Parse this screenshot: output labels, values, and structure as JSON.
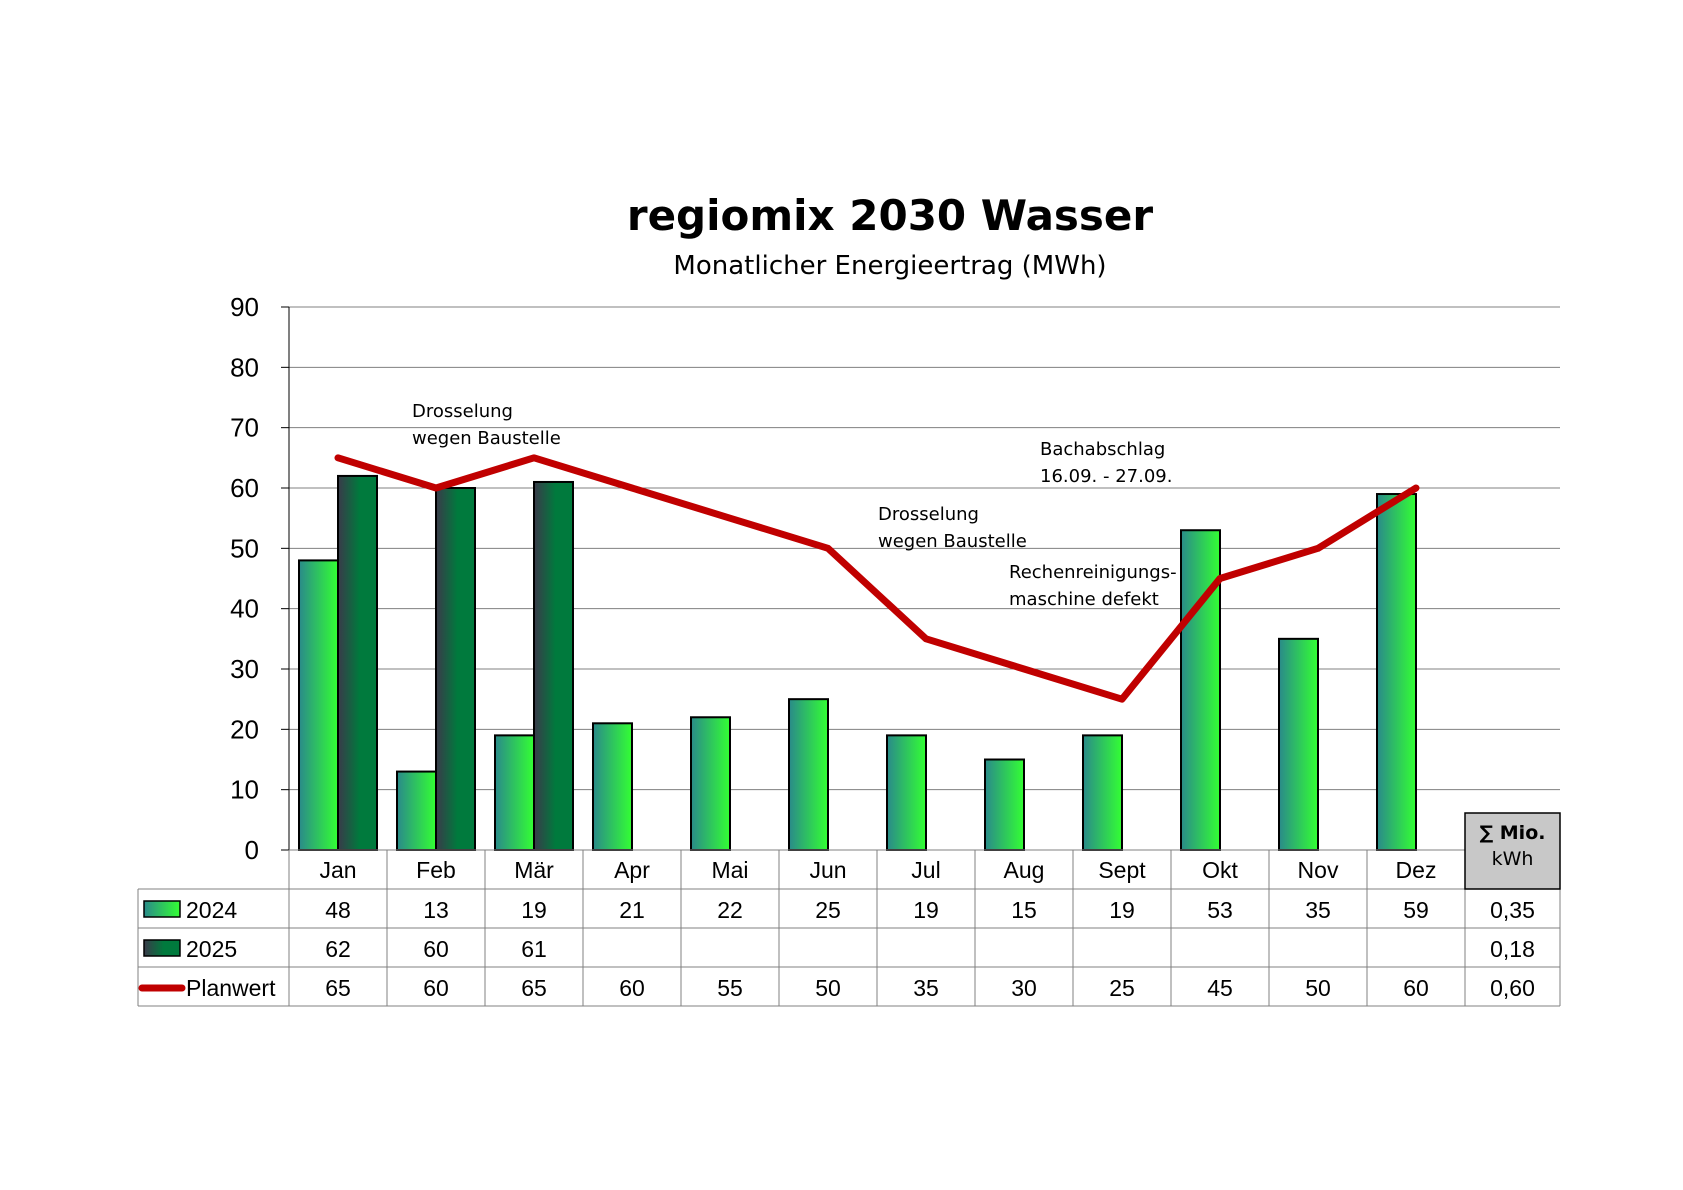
{
  "chart_data": {
    "type": "bar",
    "title": "regiomix 2030 Wasser",
    "subtitle": "Monatlicher Energieertrag (MWh)",
    "categories": [
      "Jan",
      "Feb",
      "Mär",
      "Apr",
      "Mai",
      "Jun",
      "Jul",
      "Aug",
      "Sept",
      "Okt",
      "Nov",
      "Dez"
    ],
    "ylim": [
      0,
      90
    ],
    "yticks": [
      "0",
      "10",
      "20",
      "30",
      "40",
      "50",
      "60",
      "70",
      "80",
      "90"
    ],
    "grid": true,
    "series": [
      {
        "name": "2024",
        "kind": "bar",
        "values": [
          48,
          13,
          19,
          21,
          22,
          25,
          19,
          15,
          19,
          53,
          35,
          59
        ],
        "labels": [
          "48",
          "13",
          "19",
          "21",
          "22",
          "25",
          "19",
          "15",
          "19",
          "53",
          "35",
          "59"
        ],
        "sum": "0,35"
      },
      {
        "name": "2025",
        "kind": "bar",
        "values": [
          62,
          60,
          61,
          null,
          null,
          null,
          null,
          null,
          null,
          null,
          null,
          null
        ],
        "labels": [
          "62",
          "60",
          "61",
          "",
          "",
          "",
          "",
          "",
          "",
          "",
          "",
          ""
        ],
        "sum": "0,18"
      },
      {
        "name": "Planwert",
        "kind": "line",
        "values": [
          65,
          60,
          65,
          60,
          55,
          50,
          35,
          30,
          25,
          45,
          50,
          60
        ],
        "labels": [
          "65",
          "60",
          "65",
          "60",
          "55",
          "50",
          "35",
          "30",
          "25",
          "45",
          "50",
          "60"
        ],
        "sum": "0,60"
      }
    ],
    "sum_header": [
      "∑ Mio.",
      "kWh"
    ],
    "annotations": [
      {
        "lines": [
          "Drosselung",
          "wegen Baustelle"
        ],
        "category": "Feb"
      },
      {
        "lines": [
          "Bachabschlag",
          "16.09. - 27.09."
        ],
        "category": "Sept"
      },
      {
        "lines": [
          "Drosselung",
          "wegen Baustelle"
        ],
        "category": "Jul"
      },
      {
        "lines": [
          "Rechenreinigungs-",
          "maschine defekt"
        ],
        "category": "Aug"
      }
    ],
    "colors": {
      "bar2024_light": "#33ff33",
      "bar2024_dark": "#2a8a8a",
      "bar2025_light": "#007a3d",
      "bar2025_dark": "#3a3a4a",
      "planwert": "#c00000",
      "sum_box": "#c8c8c8",
      "grid": "#808080"
    }
  }
}
